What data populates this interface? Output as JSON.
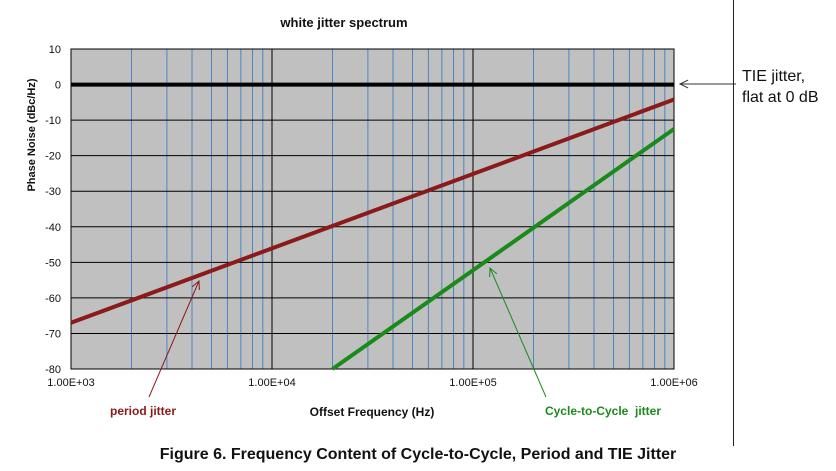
{
  "chart_data": {
    "type": "line",
    "title": "white jitter spectrum",
    "xlabel": "Offset Frequency (Hz)",
    "ylabel": "Phase Noise (dBc/Hz)",
    "x_scale": "log",
    "xlim": [
      1000,
      1000000
    ],
    "ylim": [
      -80,
      10
    ],
    "grid": true,
    "x_ticks": [
      "1.00E+03",
      "1.00E+04",
      "1.00E+05",
      "1.00E+06"
    ],
    "y_ticks": [
      "10",
      "0",
      "-10",
      "-20",
      "-30",
      "-40",
      "-50",
      "-60",
      "-70",
      "-80"
    ],
    "series": [
      {
        "name": "TIE jitter, flat at 0 dB",
        "color": "#000000",
        "x": [
          1000,
          1000000
        ],
        "y": [
          0,
          0
        ]
      },
      {
        "name": "period jitter",
        "color": "#8b1a1a",
        "x": [
          1000,
          1000000
        ],
        "y": [
          -67,
          -4.2
        ]
      },
      {
        "name": "Cycle-to-Cycle jitter",
        "color": "#1a8a1a",
        "x": [
          20000,
          1000000
        ],
        "y": [
          -80,
          -12.5
        ]
      }
    ],
    "annotations": [
      {
        "text": "period jitter",
        "color": "#8b1a1a"
      },
      {
        "text": "Cycle-to-Cycle  jitter",
        "color": "#1a8a1a"
      },
      {
        "text": "TIE jitter,",
        "color": "#111111"
      },
      {
        "text": "flat at 0 dB",
        "color": "#111111"
      }
    ],
    "colors": {
      "plot_background": "#c0c0c0",
      "minor_grid": "#4a86c5",
      "major_grid": "#000000"
    }
  },
  "side_note": {
    "line1": "TIE jitter,",
    "line2": "flat at 0 dB"
  },
  "caption": "Figure 6. Frequency Content of Cycle-to-Cycle, Period and TIE Jitter"
}
